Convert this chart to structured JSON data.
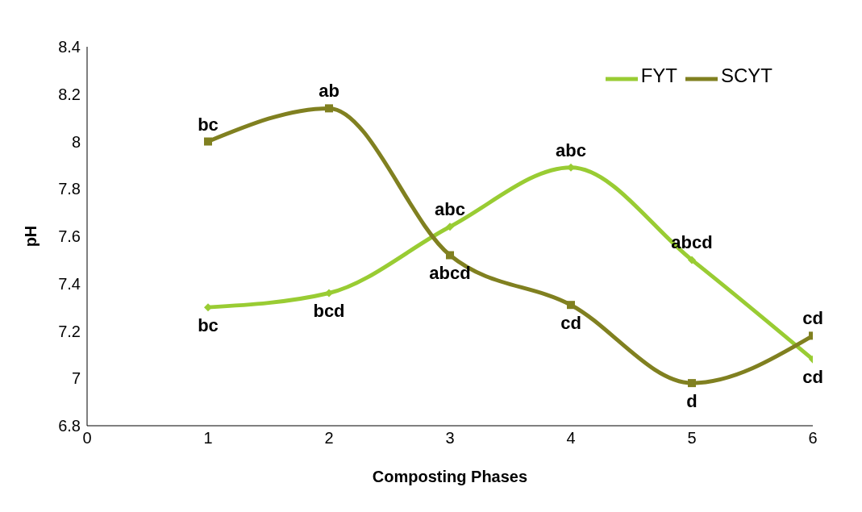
{
  "chart_data": {
    "type": "line",
    "xlabel": "Composting Phases",
    "ylabel": "pH",
    "x": [
      1,
      2,
      3,
      4,
      5,
      6
    ],
    "series": [
      {
        "name": "FYT",
        "color": "#99cc33",
        "marker": "diamond",
        "values": [
          7.3,
          7.36,
          7.64,
          7.89,
          7.5,
          7.08
        ]
      },
      {
        "name": "SCYT",
        "color": "#808020",
        "marker": "square",
        "values": [
          8.0,
          8.14,
          7.52,
          7.31,
          6.98,
          7.18
        ]
      }
    ],
    "xlim": [
      0,
      6
    ],
    "xticks": [
      0,
      1,
      2,
      3,
      4,
      5,
      6
    ],
    "ylim": [
      6.8,
      8.4
    ],
    "yticks": [
      6.8,
      7,
      7.2,
      7.4,
      7.6,
      7.8,
      8,
      8.2,
      8.4
    ],
    "grid": false,
    "legend": "top right",
    "line_style": "solid",
    "annotations": [
      {
        "text": "bc",
        "x": 1,
        "y": 7.3
      },
      {
        "text": "bcd",
        "x": 2,
        "y": 7.36
      },
      {
        "text": "abc",
        "x": 3,
        "y": 7.64
      },
      {
        "text": "abc",
        "x": 4,
        "y": 7.89
      },
      {
        "text": "abcd",
        "x": 5,
        "y": 7.5
      },
      {
        "text": "cd",
        "x": 6,
        "y": 7.08
      },
      {
        "text": "bc",
        "x": 1,
        "y": 8.0
      },
      {
        "text": "ab",
        "x": 2,
        "y": 8.14
      },
      {
        "text": "abcd",
        "x": 3,
        "y": 7.52
      },
      {
        "text": "cd",
        "x": 4,
        "y": 7.31
      },
      {
        "text": "d",
        "x": 5,
        "y": 6.98
      },
      {
        "text": "cd",
        "x": 6,
        "y": 7.18
      }
    ]
  }
}
